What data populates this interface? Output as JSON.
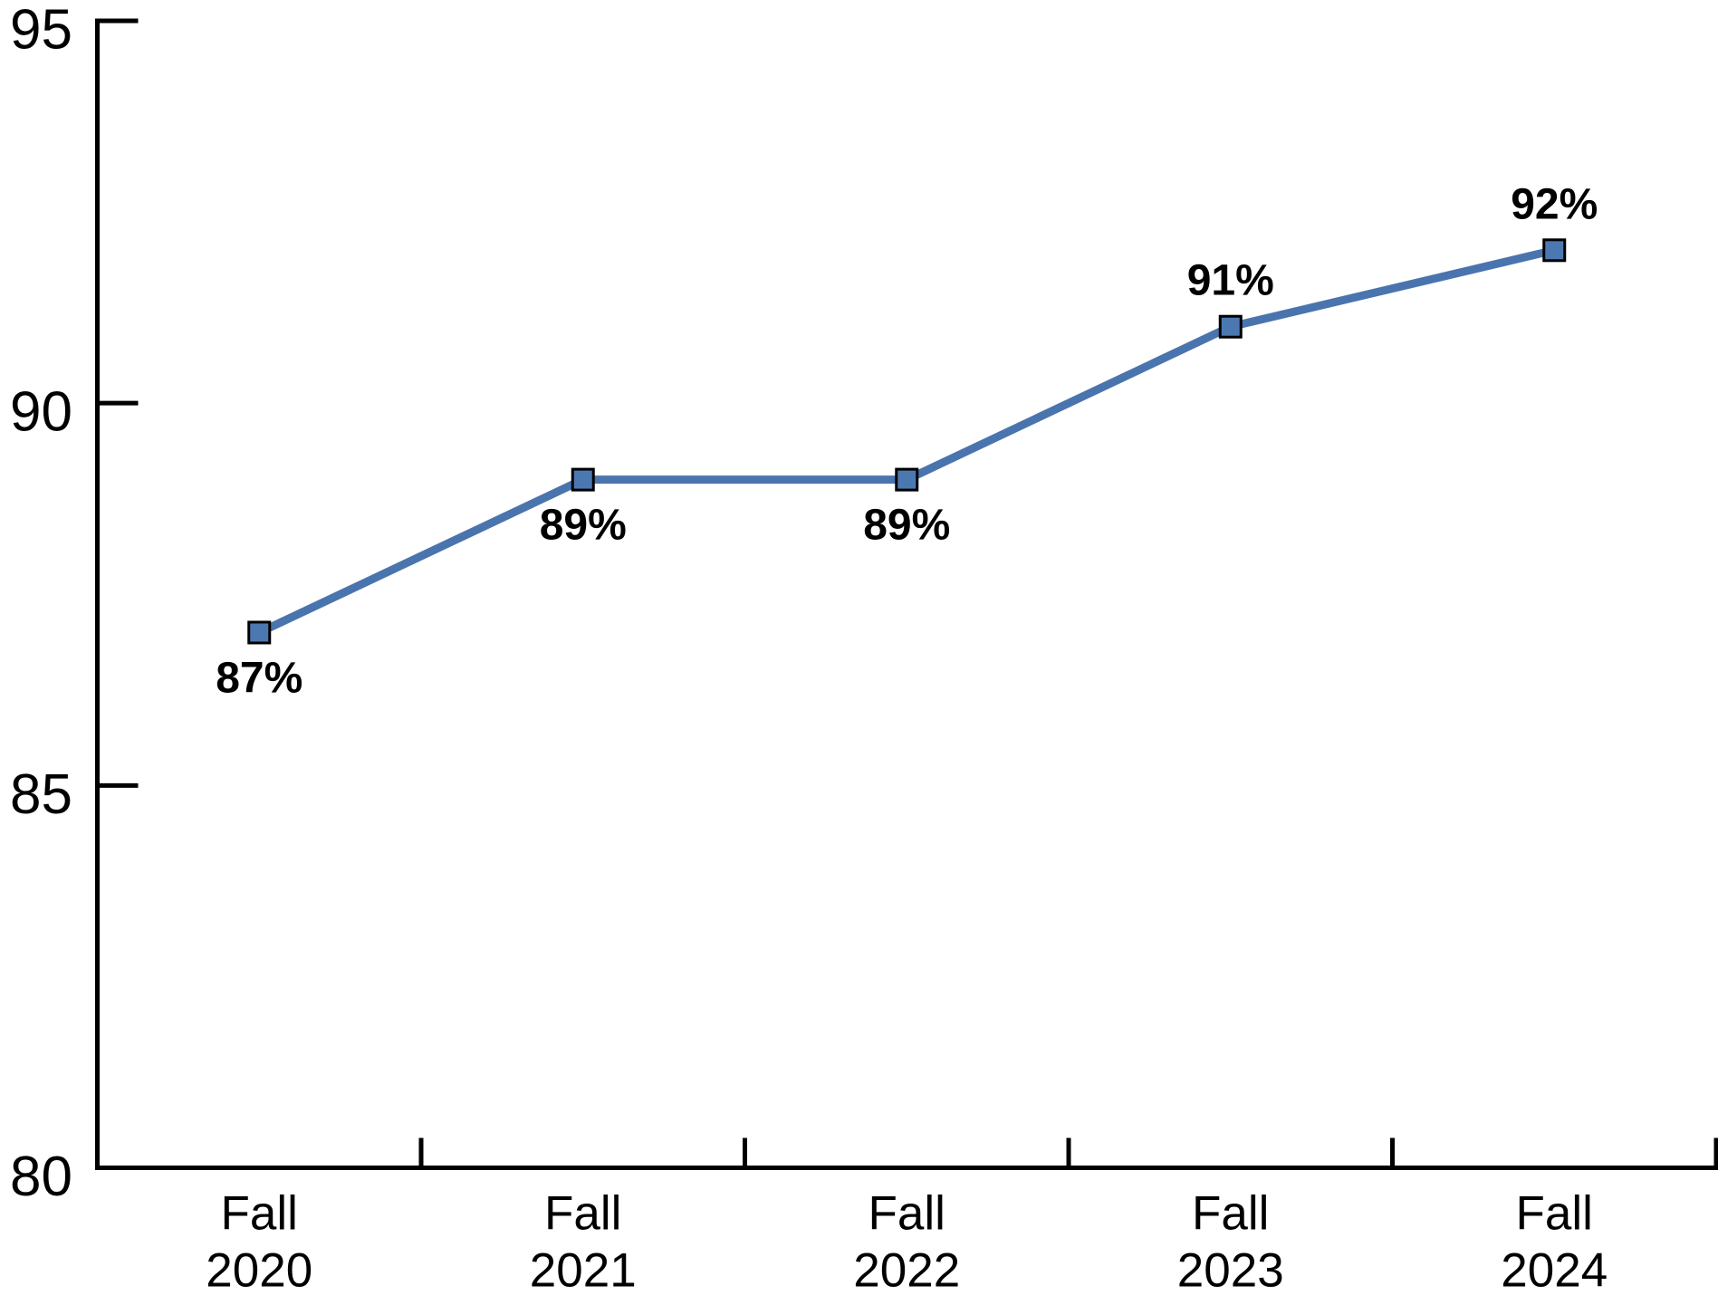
{
  "chart_data": {
    "type": "line",
    "categories": [
      "Fall 2020",
      "Fall 2021",
      "Fall 2022",
      "Fall 2023",
      "Fall 2024"
    ],
    "values": [
      87,
      89,
      89,
      91,
      92
    ],
    "data_labels": [
      "87%",
      "89%",
      "89%",
      "91%",
      "92%"
    ],
    "data_label_positions": [
      "below",
      "below",
      "below",
      "above",
      "above"
    ],
    "title": "",
    "xlabel": "",
    "ylabel": "",
    "ylim": [
      80,
      95
    ],
    "yticks": [
      95,
      90,
      85,
      80
    ],
    "ytick_labels": [
      "95",
      "90",
      "85",
      "80"
    ],
    "grid": "off",
    "legend": "none",
    "marker": "square",
    "colors": {
      "line": "#4A74AD",
      "marker_fill": "#4C78B1",
      "marker_stroke": "#000000",
      "axis": "#000000",
      "label_text": "#000000"
    }
  }
}
